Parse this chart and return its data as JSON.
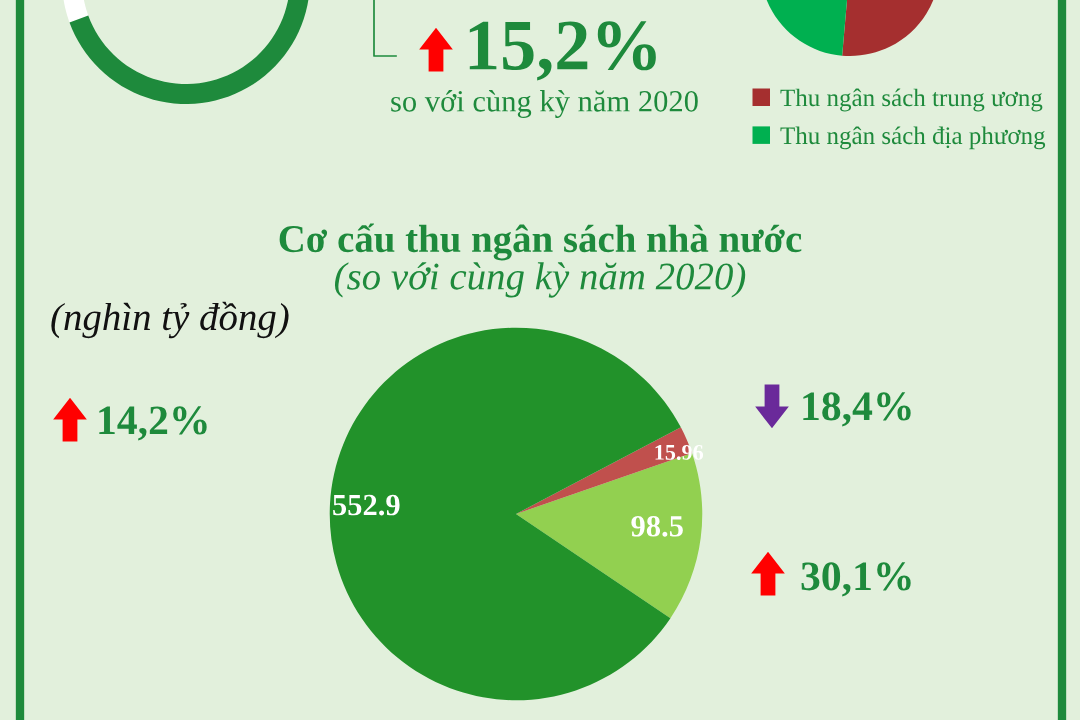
{
  "chart_data": [
    {
      "type": "other",
      "annotations": [
        "15,2%",
        "so với cùng kỳ năm 2020"
      ]
    },
    {
      "type": "pie",
      "categories": [
        "Thu ngân sách trung ương",
        "Thu ngân sách địa phương"
      ],
      "values": [
        35,
        65
      ],
      "colors": [
        "#a52f2f",
        "#00b050"
      ],
      "legend": "bottom"
    },
    {
      "type": "pie",
      "title": "Cơ cấu thu ngân sách nhà nước",
      "subtitle": "(so với cùng kỳ năm 2020)",
      "categories": [
        null,
        null,
        null
      ],
      "values": [
        98.5,
        15.96,
        552.9
      ],
      "colors": [
        "#92d050",
        "#c0504d",
        "#22922a"
      ],
      "data_labels": true,
      "annotations": [
        "(nghìn tỷ đồng)",
        "30,1%",
        "18,4%",
        "14,2%"
      ]
    }
  ]
}
